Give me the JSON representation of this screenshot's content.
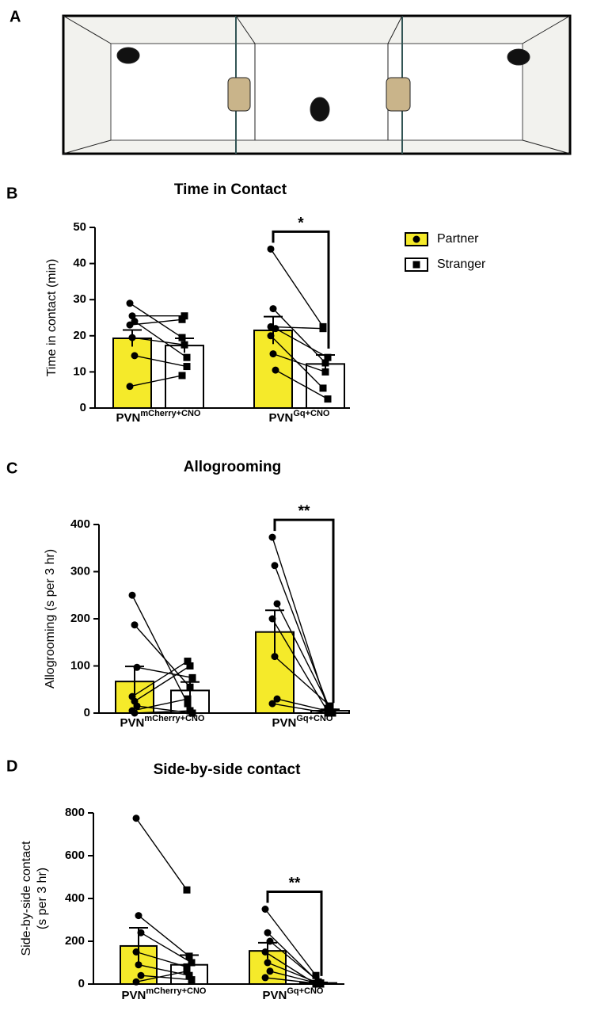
{
  "panel_labels": [
    "A",
    "B",
    "C",
    "D"
  ],
  "chart_data": [
    {
      "type": "bar",
      "title": "Time in Contact",
      "y_label": [
        "Time in contact (min)"
      ],
      "categories": [
        "PVN",
        "PVN"
      ],
      "category_superscripts": [
        "mCherry+CNO",
        "Gq+CNO"
      ],
      "ylim": [
        0,
        50
      ],
      "yticks": [
        0,
        10,
        20,
        30,
        40,
        50
      ],
      "legend": "right",
      "series": [
        {
          "name": "Partner",
          "color": "#f5ea2a",
          "marker": "circle",
          "values": [
            19.3,
            21.5
          ],
          "errors": [
            2.3,
            3.8
          ],
          "points": [
            [
              29,
              25.5,
              24,
              23,
              19.5,
              14.5,
              6
            ],
            [
              44,
              27.5,
              22,
              20,
              15,
              10.5,
              22.5
            ]
          ]
        },
        {
          "name": "Stranger",
          "color": "#ffffff",
          "marker": "square",
          "values": [
            17.3,
            12.2
          ],
          "errors": [
            2,
            2.5
          ],
          "points": [
            [
              19.5,
              25.5,
              14,
              24.5,
              17.5,
              11.5,
              9
            ],
            [
              22.5,
              12.5,
              14,
              5.5,
              10,
              2.5,
              22
            ]
          ]
        }
      ],
      "annotation": {
        "text": "*",
        "category": 1
      }
    },
    {
      "type": "bar",
      "title": "Allogrooming",
      "y_label": [
        "Allogrooming (s per 3 hr)"
      ],
      "categories": [
        "PVN",
        "PVN"
      ],
      "category_superscripts": [
        "mCherry+CNO",
        "Gq+CNO"
      ],
      "ylim": [
        0,
        400
      ],
      "yticks": [
        0,
        100,
        200,
        300,
        400
      ],
      "series": [
        {
          "name": "Partner",
          "color": "#f5ea2a",
          "marker": "circle",
          "values": [
            67,
            172
          ],
          "errors": [
            32,
            46
          ],
          "points": [
            [
              250,
              187,
              97,
              35,
              25,
              15,
              5,
              0
            ],
            [
              373,
              313,
              232,
              200,
              120,
              30,
              20
            ]
          ]
        },
        {
          "name": "Stranger",
          "color": "#ffffff",
          "marker": "square",
          "values": [
            48,
            5
          ],
          "errors": [
            18,
            3
          ],
          "points": [
            [
              20,
              55,
              75,
              110,
              100,
              0,
              30,
              5
            ],
            [
              10,
              5,
              0,
              3,
              15,
              2,
              0
            ]
          ]
        }
      ],
      "annotation": {
        "text": "**",
        "category": 1
      }
    },
    {
      "type": "bar",
      "title": "Side-by-side contact",
      "y_label": [
        "Side-by-side contact",
        "(s per 3 hr)"
      ],
      "categories": [
        "PVN",
        "PVN"
      ],
      "category_superscripts": [
        "mCherry+CNO",
        "Gq+CNO"
      ],
      "ylim": [
        0,
        800
      ],
      "yticks": [
        0,
        200,
        400,
        600,
        800
      ],
      "series": [
        {
          "name": "Partner",
          "color": "#f5ea2a",
          "marker": "circle",
          "values": [
            178,
            155
          ],
          "errors": [
            85,
            38
          ],
          "points": [
            [
              775,
              320,
              240,
              150,
              90,
              40,
              10
            ],
            [
              350,
              240,
              200,
              150,
              100,
              60,
              30
            ]
          ]
        },
        {
          "name": "Stranger",
          "color": "#ffffff",
          "marker": "square",
          "values": [
            90,
            5
          ],
          "errors": [
            45,
            3
          ],
          "points": [
            [
              440,
              130,
              100,
              80,
              40,
              20,
              60
            ],
            [
              40,
              10,
              5,
              0,
              5,
              0,
              3
            ]
          ]
        }
      ],
      "annotation": {
        "text": "**",
        "category": 1
      }
    }
  ]
}
